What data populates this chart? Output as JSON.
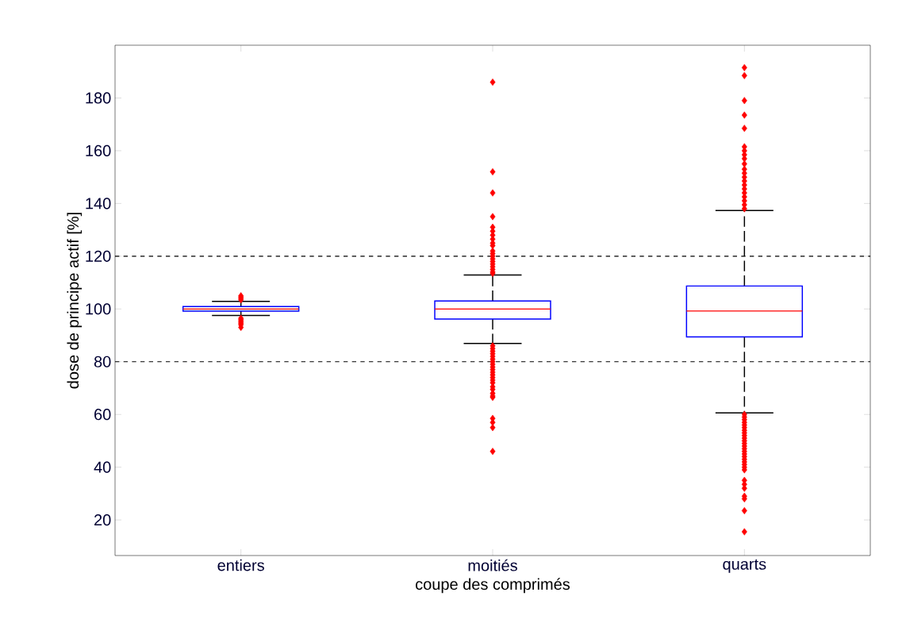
{
  "chart_data": {
    "type": "box",
    "xlabel": "coupe des comprimés",
    "ylabel": "dose de principe actif [%]",
    "categories": [
      "entiers",
      "moitiés",
      "quarts"
    ],
    "boxes": [
      {
        "low": 97.5,
        "q1": 99.2,
        "median": 100,
        "q3": 100.9,
        "high": 102.9,
        "outliers": [
          103.5,
          104,
          104.5,
          105,
          96.5,
          96,
          95.5,
          95,
          94.5,
          94,
          93
        ]
      },
      {
        "low": 86.9,
        "q1": 96.2,
        "median": 100,
        "q3": 103,
        "high": 112.9,
        "outliers": [
          186,
          152,
          144,
          135,
          131,
          129.5,
          128,
          126.5,
          125,
          124,
          122,
          121,
          120,
          119,
          118,
          117,
          116,
          115,
          114,
          113.5,
          86,
          85,
          84,
          83,
          82,
          81,
          80,
          79,
          78,
          77,
          76,
          75,
          74,
          73,
          72,
          70.5,
          69.5,
          68,
          67,
          66.5,
          58.5,
          57,
          55,
          46
        ]
      },
      {
        "low": 60.6,
        "q1": 89.4,
        "median": 99.2,
        "q3": 108.7,
        "high": 137.3,
        "outliers": [
          191.5,
          188.5,
          179,
          173.5,
          168.5,
          161.5,
          160,
          158.5,
          157,
          155,
          153,
          151.5,
          150,
          148.5,
          147,
          145.5,
          144,
          142.5,
          141,
          139.5,
          138,
          60,
          59,
          58,
          57,
          56,
          55,
          54,
          53,
          52,
          51,
          50,
          49,
          48,
          47,
          46,
          45,
          44,
          43,
          42,
          41,
          40,
          39,
          35,
          33.5,
          32,
          29,
          28,
          23.5,
          15.5
        ]
      }
    ],
    "marker": "diamond",
    "ylim": [
      6.5,
      200
    ],
    "yticks": [
      20,
      40,
      60,
      80,
      100,
      120,
      140,
      160,
      180
    ],
    "ref_lines": [
      {
        "axis": "y",
        "value": 120,
        "line_style": "dashed"
      },
      {
        "axis": "y",
        "value": 80,
        "line_style": "dashed"
      }
    ],
    "grid": false
  }
}
